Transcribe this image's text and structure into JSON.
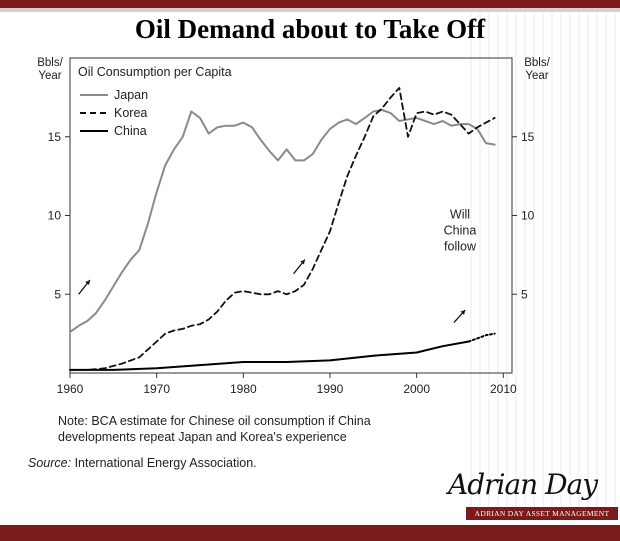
{
  "page": {
    "title": "Oil Demand about to Take Off",
    "note_line1": "Note: BCA estimate for Chinese oil consumption if China",
    "note_line2": "developments repeat Japan and Korea's experience",
    "source_label": "Source:",
    "source_text": "International Energy Association.",
    "signature": "Adrian Day",
    "brand": "ADRIAN DAY ASSET MANAGEMENT"
  },
  "chart_data": {
    "type": "line",
    "title": "Oil Consumption per Capita",
    "ylabel_left": "Bbls/\nYear",
    "ylabel_right": "Bbls/\nYear",
    "xlim": [
      1960,
      2011
    ],
    "ylim": [
      0,
      20
    ],
    "xticks": [
      1960,
      1970,
      1980,
      1990,
      2000,
      2010
    ],
    "yticks": [
      5,
      10,
      15
    ],
    "annotation": "Will\nChina\nfollow",
    "series": [
      {
        "name": "Japan",
        "style": "solid",
        "color": "#8a8a8a",
        "points": [
          [
            1960,
            2.6
          ],
          [
            1961,
            3.0
          ],
          [
            1962,
            3.3
          ],
          [
            1963,
            3.8
          ],
          [
            1964,
            4.6
          ],
          [
            1965,
            5.5
          ],
          [
            1966,
            6.4
          ],
          [
            1967,
            7.2
          ],
          [
            1968,
            7.8
          ],
          [
            1969,
            9.5
          ],
          [
            1970,
            11.5
          ],
          [
            1971,
            13.2
          ],
          [
            1972,
            14.2
          ],
          [
            1973,
            15.0
          ],
          [
            1974,
            16.6
          ],
          [
            1975,
            16.2
          ],
          [
            1976,
            15.2
          ],
          [
            1977,
            15.6
          ],
          [
            1978,
            15.7
          ],
          [
            1979,
            15.7
          ],
          [
            1980,
            15.9
          ],
          [
            1981,
            15.6
          ],
          [
            1982,
            14.8
          ],
          [
            1983,
            14.1
          ],
          [
            1984,
            13.5
          ],
          [
            1985,
            14.2
          ],
          [
            1986,
            13.5
          ],
          [
            1987,
            13.5
          ],
          [
            1988,
            13.9
          ],
          [
            1989,
            14.8
          ],
          [
            1990,
            15.5
          ],
          [
            1991,
            15.9
          ],
          [
            1992,
            16.1
          ],
          [
            1993,
            15.8
          ],
          [
            1994,
            16.2
          ],
          [
            1995,
            16.6
          ],
          [
            1996,
            16.7
          ],
          [
            1997,
            16.5
          ],
          [
            1998,
            16.0
          ],
          [
            1999,
            16.1
          ],
          [
            2000,
            16.2
          ],
          [
            2001,
            16.0
          ],
          [
            2002,
            15.8
          ],
          [
            2003,
            16.0
          ],
          [
            2004,
            15.7
          ],
          [
            2005,
            15.8
          ],
          [
            2006,
            15.8
          ],
          [
            2007,
            15.5
          ],
          [
            2008,
            14.6
          ],
          [
            2009,
            14.5
          ]
        ]
      },
      {
        "name": "Korea",
        "style": "dashed",
        "color": "#111111",
        "points": [
          [
            1960,
            0.2
          ],
          [
            1962,
            0.2
          ],
          [
            1964,
            0.3
          ],
          [
            1966,
            0.6
          ],
          [
            1968,
            1.0
          ],
          [
            1969,
            1.5
          ],
          [
            1970,
            2.0
          ],
          [
            1971,
            2.5
          ],
          [
            1972,
            2.7
          ],
          [
            1973,
            2.8
          ],
          [
            1974,
            3.0
          ],
          [
            1975,
            3.1
          ],
          [
            1976,
            3.4
          ],
          [
            1977,
            3.9
          ],
          [
            1978,
            4.6
          ],
          [
            1979,
            5.1
          ],
          [
            1980,
            5.2
          ],
          [
            1981,
            5.1
          ],
          [
            1982,
            5.0
          ],
          [
            1983,
            5.0
          ],
          [
            1984,
            5.2
          ],
          [
            1985,
            5.0
          ],
          [
            1986,
            5.2
          ],
          [
            1987,
            5.6
          ],
          [
            1988,
            6.6
          ],
          [
            1989,
            7.8
          ],
          [
            1990,
            9.0
          ],
          [
            1991,
            10.8
          ],
          [
            1992,
            12.5
          ],
          [
            1993,
            13.8
          ],
          [
            1994,
            15.0
          ],
          [
            1995,
            16.3
          ],
          [
            1996,
            16.8
          ],
          [
            1997,
            17.5
          ],
          [
            1998,
            18.1
          ],
          [
            1999,
            15.0
          ],
          [
            2000,
            16.5
          ],
          [
            2001,
            16.6
          ],
          [
            2002,
            16.4
          ],
          [
            2003,
            16.6
          ],
          [
            2004,
            16.4
          ],
          [
            2005,
            15.8
          ],
          [
            2006,
            15.2
          ],
          [
            2007,
            15.6
          ],
          [
            2008,
            15.9
          ],
          [
            2009,
            16.2
          ]
        ]
      },
      {
        "name": "China",
        "style": "solid",
        "color": "#000000",
        "points": [
          [
            1960,
            0.2
          ],
          [
            1965,
            0.2
          ],
          [
            1970,
            0.3
          ],
          [
            1975,
            0.5
          ],
          [
            1980,
            0.7
          ],
          [
            1985,
            0.7
          ],
          [
            1990,
            0.8
          ],
          [
            1995,
            1.1
          ],
          [
            2000,
            1.3
          ],
          [
            2003,
            1.7
          ],
          [
            2006,
            2.0
          ]
        ]
      },
      {
        "name": "China (BCA estimate)",
        "style": "dotted",
        "color": "#000000",
        "points": [
          [
            2006,
            2.0
          ],
          [
            2007,
            2.2
          ],
          [
            2008,
            2.4
          ],
          [
            2009,
            2.5
          ]
        ]
      }
    ],
    "arrows": [
      {
        "from": [
          1961,
          5.0
        ],
        "to": [
          1962.3,
          5.9
        ]
      },
      {
        "from": [
          1985.8,
          6.3
        ],
        "to": [
          1987.1,
          7.2
        ]
      },
      {
        "from": [
          2004.3,
          3.2
        ],
        "to": [
          2005.6,
          4.0
        ]
      }
    ]
  }
}
